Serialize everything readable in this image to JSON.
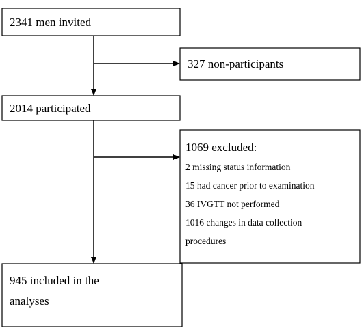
{
  "nodes": [
    {
      "label": "2341 men invited"
    },
    {
      "label": "327 non-participants"
    },
    {
      "label": "2014 participated"
    },
    {
      "label": "1069 excluded:",
      "lines": [
        "2 missing status information",
        "15 had cancer prior to examination",
        "36 IVGTT not performed",
        "1016 changes in data collection",
        "procedures"
      ]
    },
    {
      "lines": [
        "945 included in the",
        "analyses"
      ]
    }
  ]
}
